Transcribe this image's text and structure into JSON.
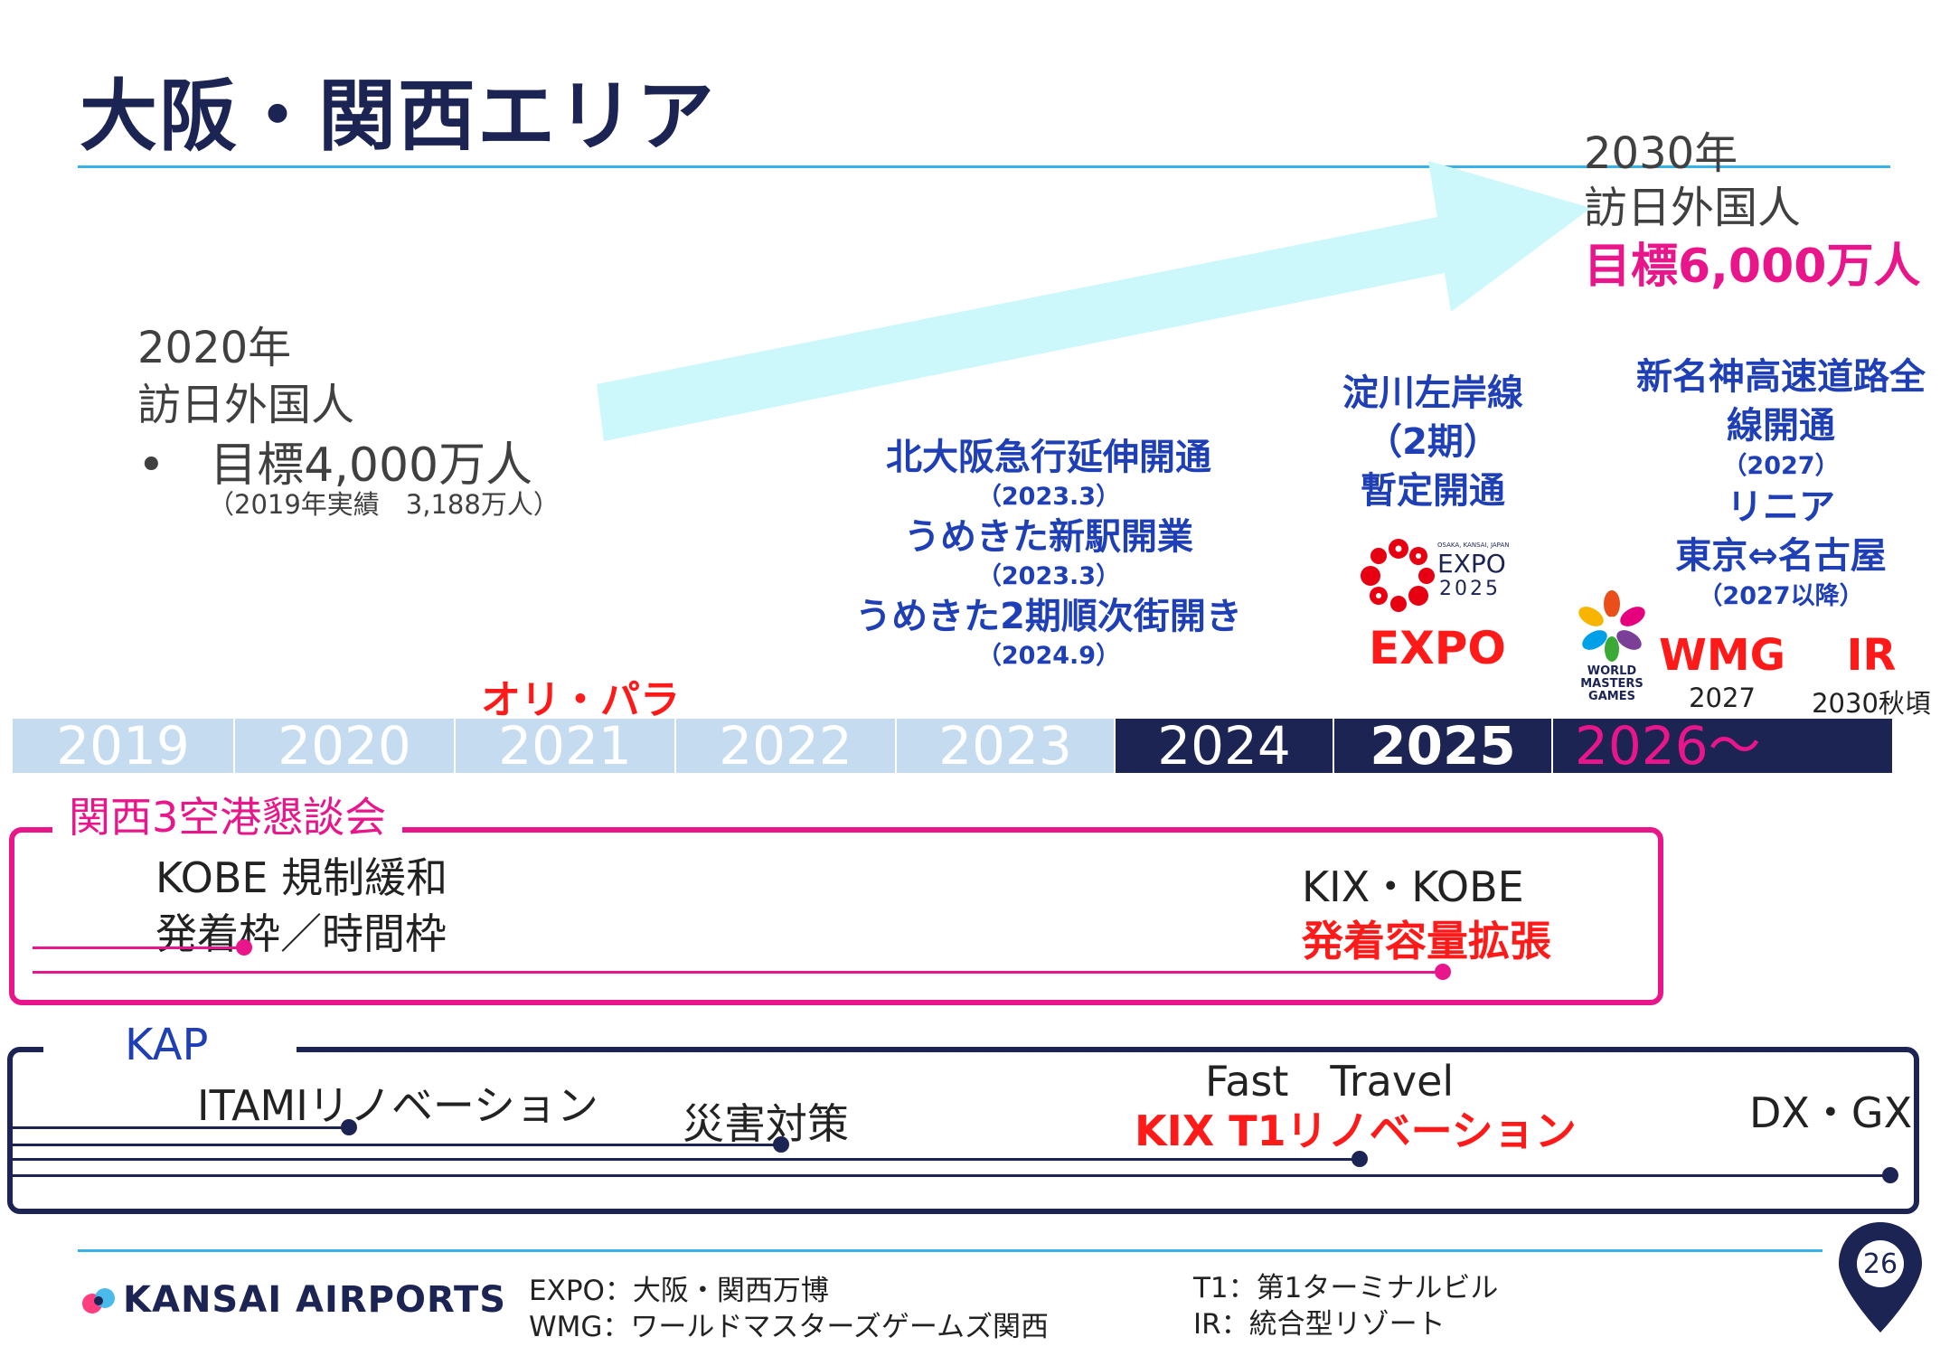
{
  "title": "大阪・関西エリア",
  "target_2020": {
    "year": "2020年",
    "label": "訪日外国人",
    "goal": "目標4,000万人",
    "actual": "（2019年実績　3,188万人）"
  },
  "target_2030": {
    "year": "2030年",
    "label": "訪日外国人",
    "goal": "目標6,000万人"
  },
  "olympics_label": "オリ・パラ",
  "events": {
    "kita_osaka": "北大阪急行延伸開通",
    "kita_osaka_date": "（2023.3）",
    "umekita_station": "うめきた新駅開業",
    "umekita_station_date": "（2023.3）",
    "umekita_phase2": "うめきた2期順次街開き",
    "umekita_phase2_date": "（2024.9）",
    "yodogawa_1": "淀川左岸線",
    "yodogawa_2": "（2期）",
    "yodogawa_3": "暫定開通",
    "expo_logo_small": "OSAKA, KANSAI, JAPAN",
    "expo_logo_word": "EXPO",
    "expo_logo_year": "2025",
    "expo_label": "EXPO",
    "shinmeishin_1": "新名神高速道路全",
    "shinmeishin_2": "線開通",
    "shinmeishin_date": "（2027）",
    "linear": "リニア",
    "linear_route": "東京⇔名古屋",
    "linear_date": "（2027以降）",
    "wmg_logo_1": "WORLD",
    "wmg_logo_2": "MASTERS",
    "wmg_logo_3": "GAMES",
    "wmg_label": "WMG",
    "wmg_year": "2027",
    "ir_label": "IR",
    "ir_year": "2030秋頃"
  },
  "years": [
    "2019",
    "2020",
    "2021",
    "2022",
    "2023",
    "2024",
    "2025",
    "2026～"
  ],
  "kansai_council": {
    "title": "関西3空港懇談会",
    "kobe_1": "KOBE 規制緩和",
    "kobe_2": "発着枠／時間枠",
    "kix_kobe": "KIX・KOBE",
    "capacity": "発着容量拡張"
  },
  "kap": {
    "title": "KAP",
    "itami": "ITAMIリノベーション",
    "disaster": "災害対策",
    "fast_travel": "Fast　Travel",
    "kix_t1": "KIX T1リノベーション",
    "dx_gx": "DX・GX"
  },
  "footer": {
    "brand": "KANSAI AIRPORTS",
    "expo_def": "EXPO：大阪・関西万博",
    "wmg_def": "WMG：ワールドマスターズゲームズ関西",
    "t1_def": "T1：第1ターミナルビル",
    "ir_def": "IR：統合型リゾート",
    "page_number": "26"
  },
  "colors": {
    "navy": "#1b2452",
    "sky": "#36b2e8",
    "magenta": "#e8168a",
    "red": "#ff1a1a",
    "blue": "#1e3fb5",
    "year_light": "#c5dcf0"
  }
}
